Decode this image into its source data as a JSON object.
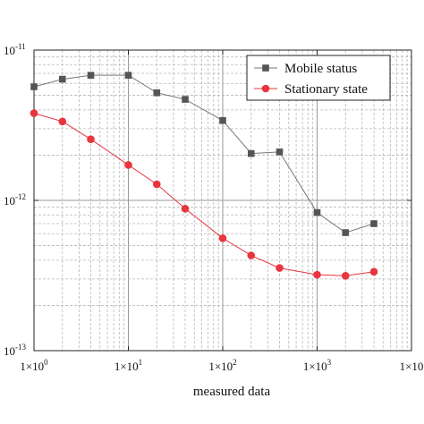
{
  "chart_data": {
    "type": "line",
    "xscale": "log",
    "yscale": "log",
    "xlim": [
      1,
      10000
    ],
    "ylim": [
      1e-13,
      1e-11
    ],
    "xlabel": "measured data",
    "ylabel": "",
    "title": "",
    "grid": true,
    "legend_position": "top-right",
    "x_ticks": [
      {
        "value": 1,
        "label": "1×10^0"
      },
      {
        "value": 10,
        "label": "1×10^1"
      },
      {
        "value": 100,
        "label": "1×10^2"
      },
      {
        "value": 1000,
        "label": "1×10^3"
      },
      {
        "value": 10000,
        "label": "1×10^"
      }
    ],
    "y_ticks": [
      {
        "value": 1e-11,
        "label": "10^-11"
      },
      {
        "value": 1e-12,
        "label": "10^-12"
      },
      {
        "value": 1e-13,
        "label": "10^-13"
      }
    ],
    "series": [
      {
        "name": "Mobile status",
        "marker": "square",
        "color": "#555555",
        "line_color": "#777777",
        "x": [
          1,
          2,
          4,
          10,
          20,
          40,
          100,
          200,
          400,
          1000,
          2000,
          4000
        ],
        "y": [
          5.7e-12,
          6.4e-12,
          6.8e-12,
          6.8e-12,
          5.2e-12,
          4.7e-12,
          3.4e-12,
          2.05e-12,
          2.1e-12,
          8.3e-13,
          6.1e-13,
          7e-13
        ]
      },
      {
        "name": "Stationary state",
        "marker": "circle",
        "color": "#e8353e",
        "line_color": "#e8353e",
        "x": [
          1,
          2,
          4,
          10,
          20,
          40,
          100,
          200,
          400,
          1000,
          2000,
          4000
        ],
        "y": [
          3.8e-12,
          3.35e-12,
          2.55e-12,
          1.72e-12,
          1.28e-12,
          8.8e-13,
          5.6e-13,
          4.3e-13,
          3.55e-13,
          3.2e-13,
          3.15e-13,
          3.35e-13
        ]
      }
    ]
  }
}
